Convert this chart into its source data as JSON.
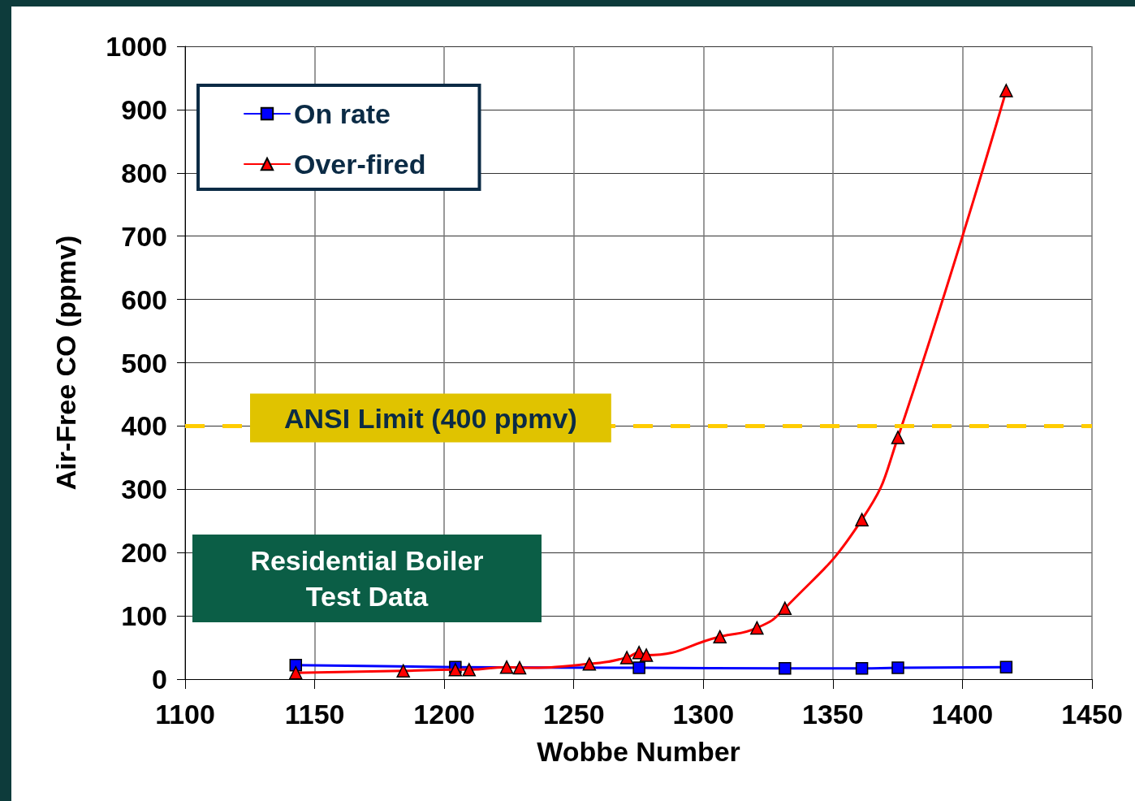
{
  "chart_data": {
    "type": "line",
    "xlabel": "Wobbe Number",
    "ylabel": "Air-Free CO (ppmv)",
    "xlim": [
      1100,
      1450
    ],
    "xticks": [
      1100,
      1150,
      1200,
      1250,
      1300,
      1350,
      1400,
      1450
    ],
    "ylim": [
      0,
      1000
    ],
    "yticks": [
      0,
      100,
      200,
      300,
      400,
      500,
      600,
      700,
      800,
      900,
      1000
    ],
    "grid": true,
    "legend": "top left",
    "line_style": "solid",
    "series": [
      {
        "name": "On rate",
        "color": "#0000ff",
        "marker": "square",
        "x": [
          1142.7,
          1204.3,
          1275.2,
          1331.5,
          1361.2,
          1375.1,
          1416.9
        ],
        "values": [
          22,
          19,
          18,
          17,
          17,
          18,
          19
        ]
      },
      {
        "name": "Over-fired",
        "color": "#ff0000",
        "marker": "triangle",
        "x": [
          1142.7,
          1184.2,
          1204.3,
          1209.6,
          1224.1,
          1229.1,
          1256,
          1270.5,
          1275.2,
          1278,
          1306.4,
          1320.7,
          1331.5,
          1361.2,
          1375.1,
          1416.9
        ],
        "values": [
          10,
          13,
          15,
          15,
          19,
          18,
          24,
          34,
          42,
          38,
          67,
          81,
          112,
          252,
          382,
          930
        ]
      }
    ],
    "ref_lines": [
      {
        "axis": "y",
        "value": 400,
        "label": "ANSI Limit (400 ppmv)",
        "color": "#ffcc00",
        "line_style": "dashed"
      }
    ],
    "annotations": [
      "Residential Boiler\nTest Data"
    ]
  }
}
